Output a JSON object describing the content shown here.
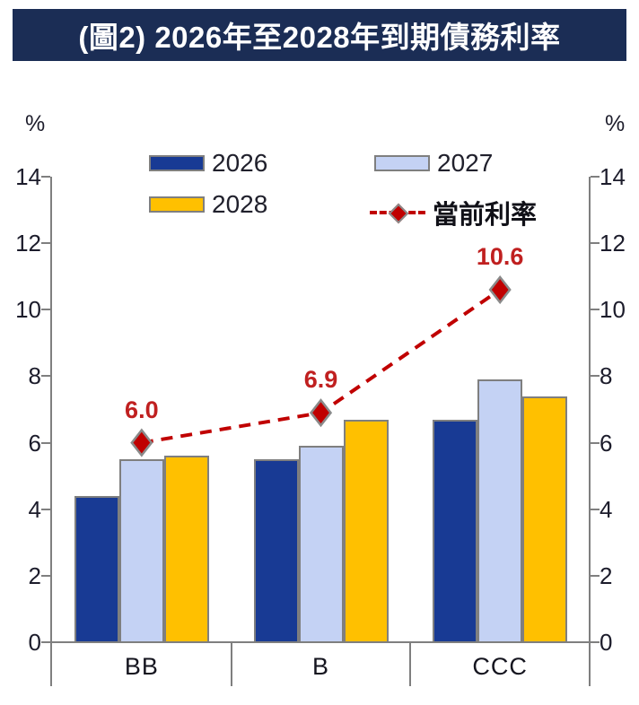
{
  "title": "(圖2) 2026年至2028年到期債務利率",
  "chart_data": {
    "type": "bar",
    "title": "(圖2) 2026年至2028年到期債務利率",
    "categories": [
      "BB",
      "B",
      "CCC"
    ],
    "series": [
      {
        "name": "2026",
        "type": "bar",
        "color": "#183A94",
        "values": [
          4.4,
          5.5,
          6.7
        ]
      },
      {
        "name": "2027",
        "type": "bar",
        "color": "#C4D2F4",
        "values": [
          5.5,
          5.9,
          7.9
        ]
      },
      {
        "name": "2028",
        "type": "bar",
        "color": "#FFC000",
        "values": [
          5.6,
          6.7,
          7.4
        ]
      },
      {
        "name": "當前利率",
        "type": "line",
        "color": "#C00000",
        "values": [
          6.0,
          6.9,
          10.6
        ],
        "labels": [
          "6.0",
          "6.9",
          "10.6"
        ]
      }
    ],
    "ylim": [
      0,
      14
    ],
    "y_ticks": [
      0,
      2,
      4,
      6,
      8,
      10,
      12,
      14
    ],
    "y_unit_left": "%",
    "y_unit_right": "%",
    "grid": false,
    "legend_position": "top",
    "axis_color": "#7F7F7F",
    "data_label_color": "#C02020"
  }
}
